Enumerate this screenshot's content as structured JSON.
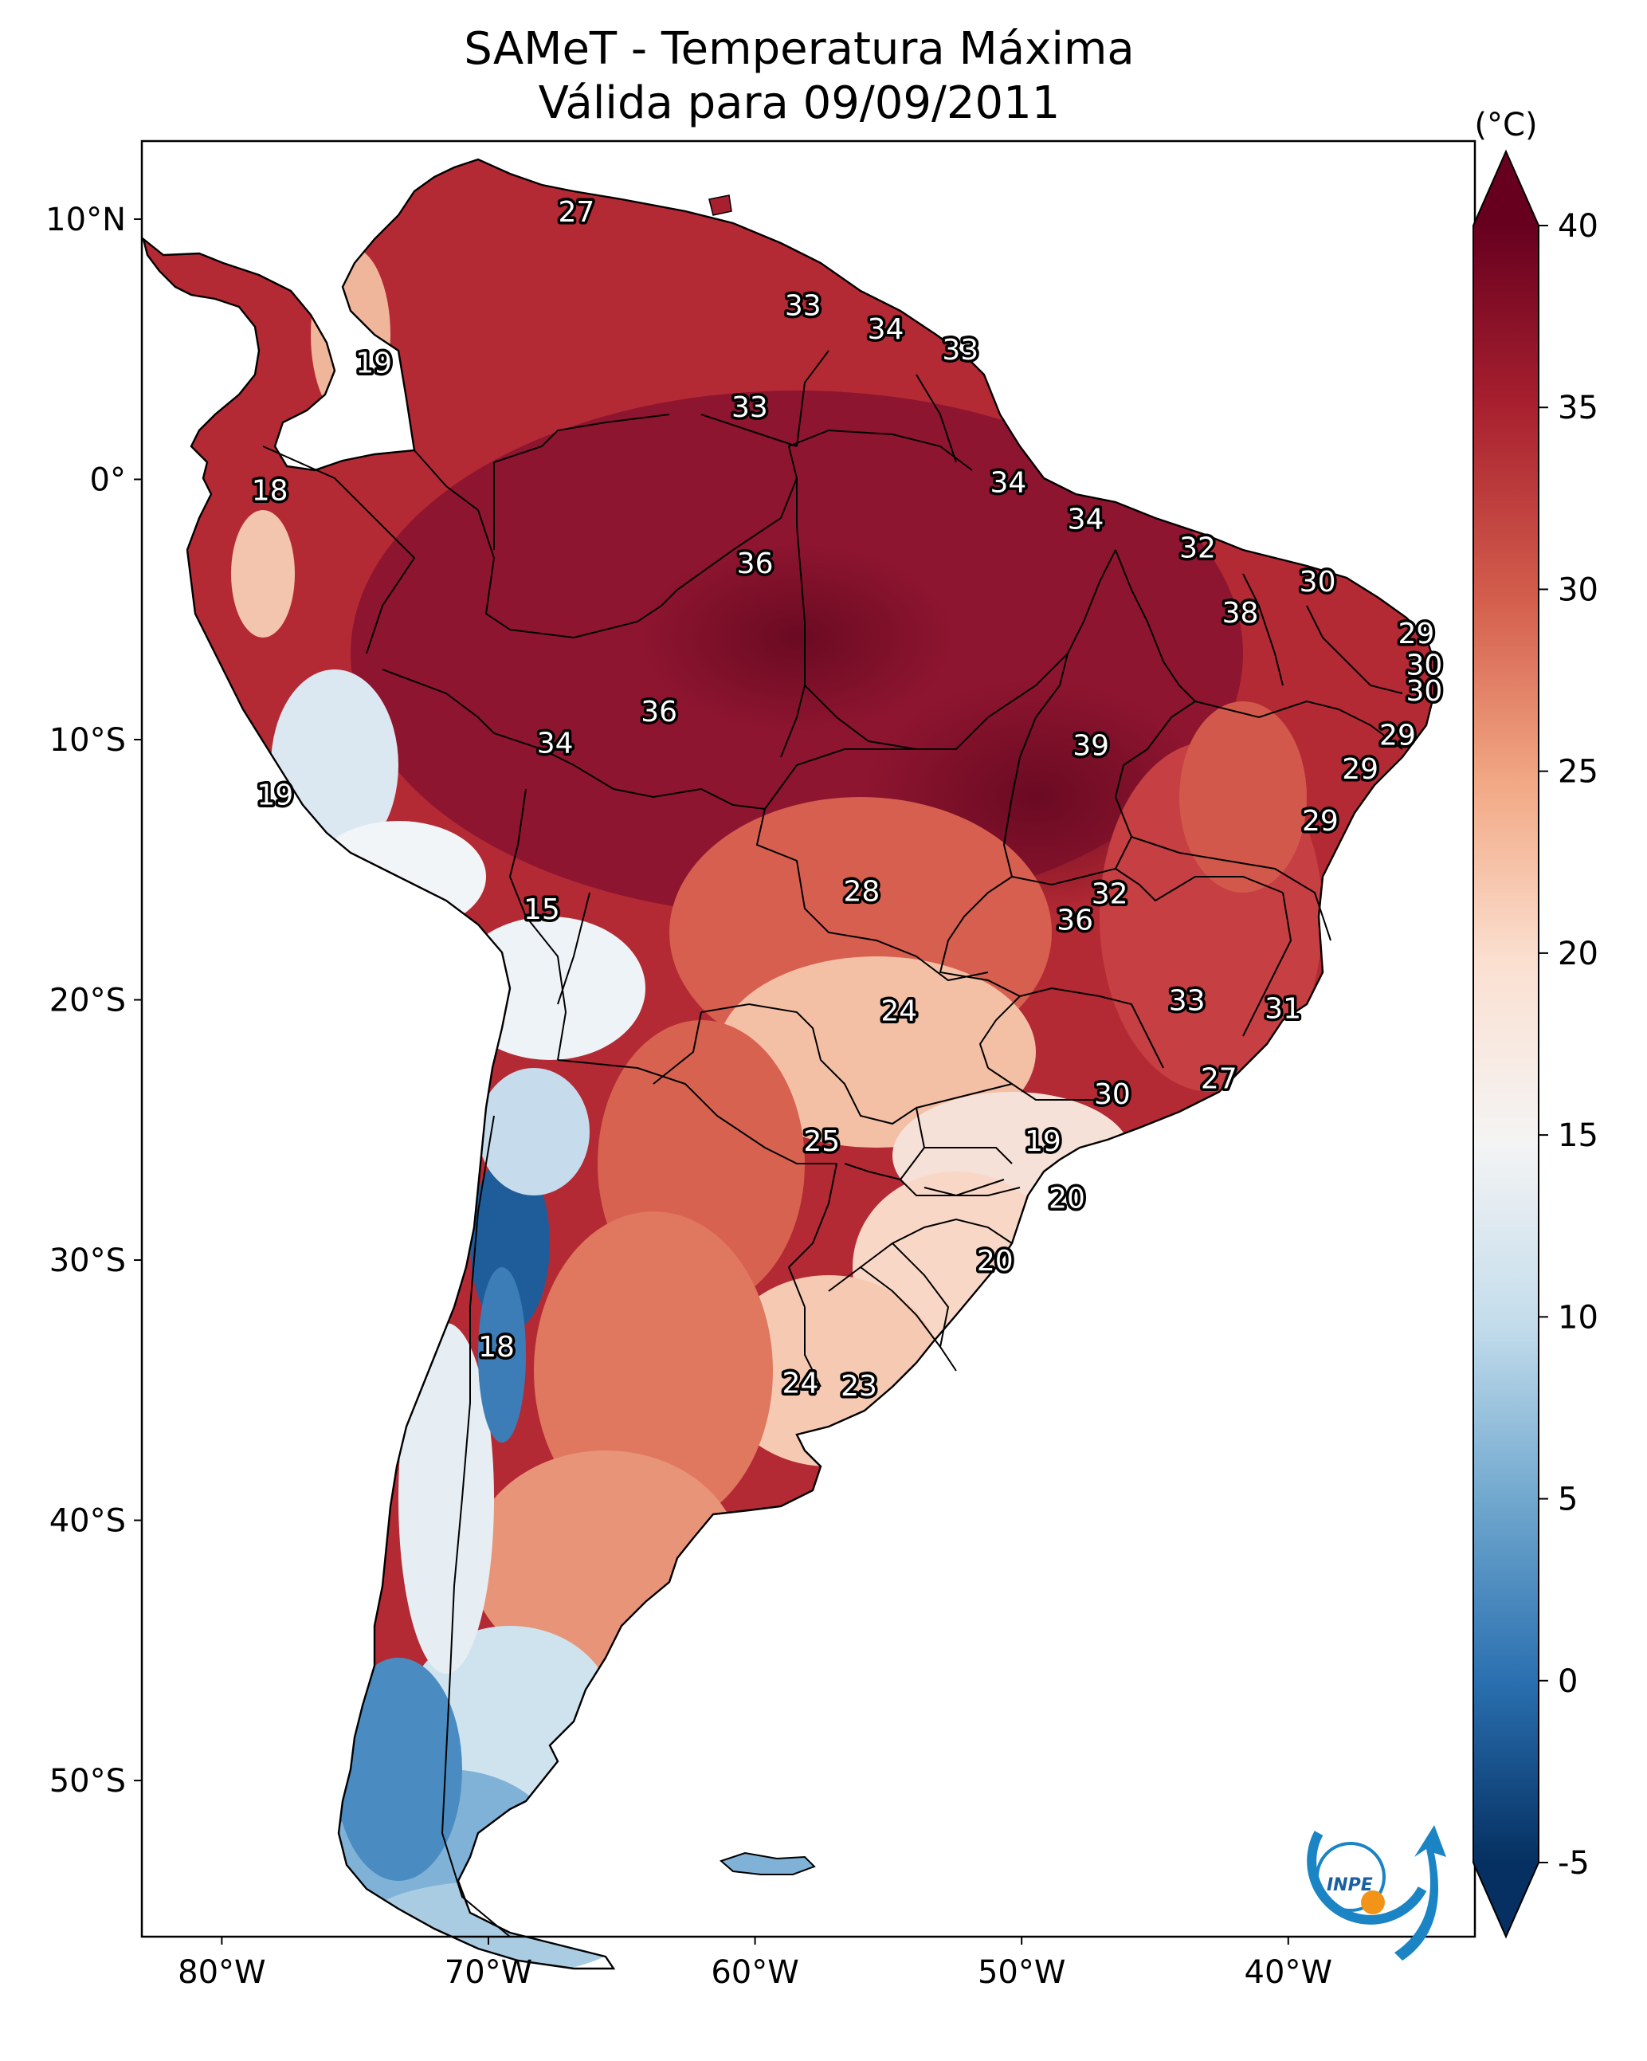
{
  "title": {
    "line1": "SAMeT - Temperatura Máxima",
    "line2": "Válida para 09/09/2011"
  },
  "colorbar": {
    "unit_label": "(°C)",
    "ticks": [
      "40",
      "35",
      "30",
      "25",
      "20",
      "15",
      "10",
      "5",
      "0",
      "-5"
    ],
    "min": -5,
    "max": 40,
    "colors": {
      "c40": "#67001f",
      "c35": "#a8202f",
      "c30": "#d45f4d",
      "c25": "#f2a884",
      "c20": "#fbe0d1",
      "c15": "#f4f4f4",
      "c10": "#c4ddec",
      "c5": "#6fa7ce",
      "c0": "#2a6fb0",
      "cm5": "#053061"
    }
  },
  "axes": {
    "lat_labels": [
      "10°N",
      "0°",
      "10°S",
      "20°S",
      "30°S",
      "40°S",
      "50°S"
    ],
    "lon_labels": [
      "80°W",
      "70°W",
      "60°W",
      "50°W",
      "40°W"
    ]
  },
  "temperature_labels": [
    {
      "value": "27",
      "lon": -66.7,
      "lat": 10.3
    },
    {
      "value": "19",
      "lon": -74.3,
      "lat": 4.5
    },
    {
      "value": "33",
      "lon": -58.2,
      "lat": 6.7
    },
    {
      "value": "34",
      "lon": -55.1,
      "lat": 5.8
    },
    {
      "value": "33",
      "lon": -52.3,
      "lat": 5.0
    },
    {
      "value": "33",
      "lon": -60.2,
      "lat": 2.8
    },
    {
      "value": "18",
      "lon": -78.2,
      "lat": -0.4
    },
    {
      "value": "34",
      "lon": -50.5,
      "lat": -0.1
    },
    {
      "value": "34",
      "lon": -47.6,
      "lat": -1.5
    },
    {
      "value": "36",
      "lon": -60.0,
      "lat": -3.2
    },
    {
      "value": "32",
      "lon": -43.4,
      "lat": -2.6
    },
    {
      "value": "30",
      "lon": -38.9,
      "lat": -3.9
    },
    {
      "value": "38",
      "lon": -41.8,
      "lat": -5.1
    },
    {
      "value": "29",
      "lon": -35.2,
      "lat": -5.9
    },
    {
      "value": "30",
      "lon": -34.9,
      "lat": -7.1
    },
    {
      "value": "30",
      "lon": -34.9,
      "lat": -8.1
    },
    {
      "value": "36",
      "lon": -63.6,
      "lat": -8.9
    },
    {
      "value": "34",
      "lon": -67.5,
      "lat": -10.1
    },
    {
      "value": "39",
      "lon": -47.4,
      "lat": -10.2
    },
    {
      "value": "29",
      "lon": -35.9,
      "lat": -9.8
    },
    {
      "value": "29",
      "lon": -37.3,
      "lat": -11.1
    },
    {
      "value": "19",
      "lon": -78.0,
      "lat": -12.1
    },
    {
      "value": "29",
      "lon": -38.8,
      "lat": -13.1
    },
    {
      "value": "28",
      "lon": -56.0,
      "lat": -15.8
    },
    {
      "value": "32",
      "lon": -46.7,
      "lat": -15.9
    },
    {
      "value": "36",
      "lon": -48.0,
      "lat": -16.9
    },
    {
      "value": "15",
      "lon": -68.0,
      "lat": -16.5
    },
    {
      "value": "24",
      "lon": -54.6,
      "lat": -20.4
    },
    {
      "value": "33",
      "lon": -43.8,
      "lat": -20.0
    },
    {
      "value": "31",
      "lon": -40.2,
      "lat": -20.3
    },
    {
      "value": "30",
      "lon": -46.6,
      "lat": -23.6
    },
    {
      "value": "27",
      "lon": -42.6,
      "lat": -23.0
    },
    {
      "value": "25",
      "lon": -57.5,
      "lat": -25.4
    },
    {
      "value": "19",
      "lon": -49.2,
      "lat": -25.4
    },
    {
      "value": "20",
      "lon": -48.3,
      "lat": -27.6
    },
    {
      "value": "20",
      "lon": -51.0,
      "lat": -30.0
    },
    {
      "value": "18",
      "lon": -69.7,
      "lat": -33.3
    },
    {
      "value": "24",
      "lon": -58.3,
      "lat": -34.7
    },
    {
      "value": "23",
      "lon": -56.1,
      "lat": -34.8
    }
  ],
  "logo": {
    "text": "INPE"
  }
}
